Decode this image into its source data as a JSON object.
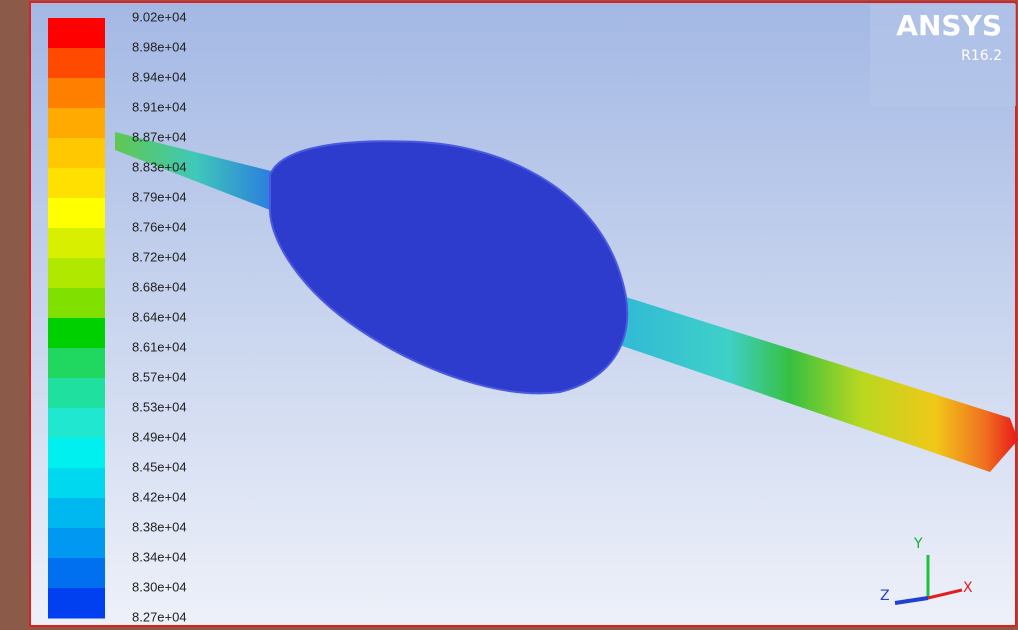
{
  "legend": {
    "labels": [
      "9.02e+04",
      "8.98e+04",
      "8.94e+04",
      "8.91e+04",
      "8.87e+04",
      "8.83e+04",
      "8.79e+04",
      "8.76e+04",
      "8.72e+04",
      "8.68e+04",
      "8.64e+04",
      "8.61e+04",
      "8.57e+04",
      "8.53e+04",
      "8.49e+04",
      "8.45e+04",
      "8.42e+04",
      "8.38e+04",
      "8.34e+04",
      "8.30e+04",
      "8.27e+04"
    ]
  },
  "logo": {
    "name": "ANSYS",
    "version": "R16.2"
  },
  "triad": {
    "x": "X",
    "y": "Y",
    "z": "Z"
  }
}
